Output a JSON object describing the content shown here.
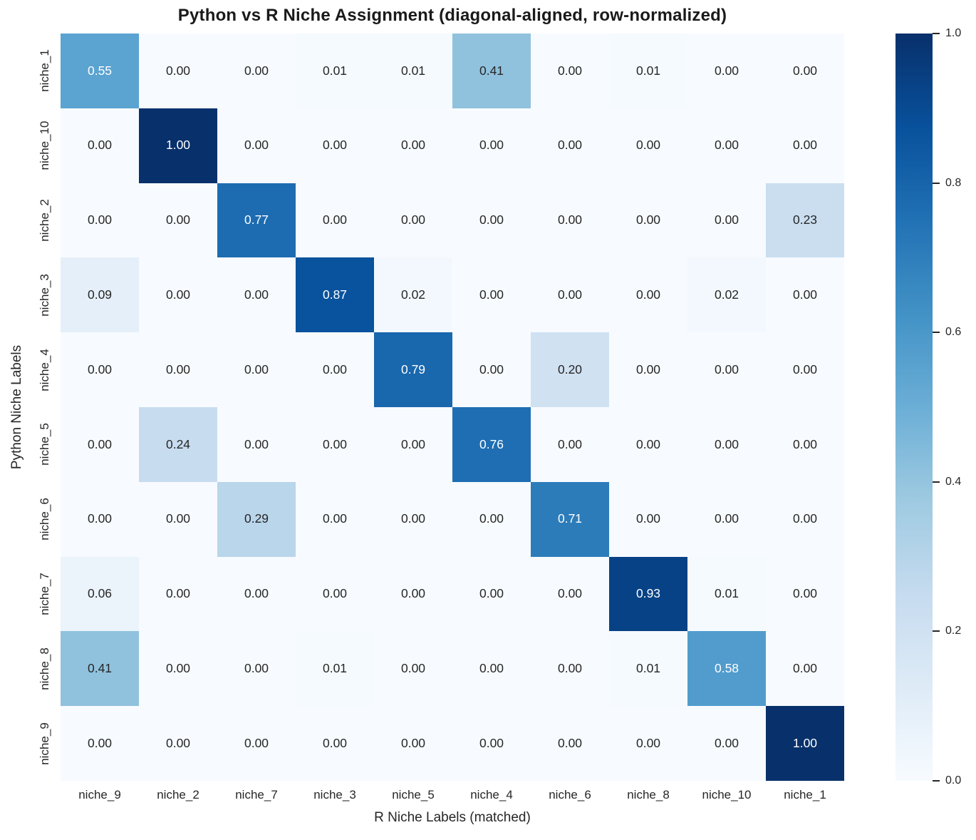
{
  "chart_data": {
    "type": "heatmap",
    "title": "Python vs R Niche Assignment (diagonal-aligned, row-normalized)",
    "xlabel": "R Niche Labels (matched)",
    "ylabel": "Python Niche Labels",
    "x_categories": [
      "niche_9",
      "niche_2",
      "niche_7",
      "niche_3",
      "niche_5",
      "niche_4",
      "niche_6",
      "niche_8",
      "niche_10",
      "niche_1"
    ],
    "y_categories": [
      "niche_1",
      "niche_10",
      "niche_2",
      "niche_3",
      "niche_4",
      "niche_5",
      "niche_6",
      "niche_7",
      "niche_8",
      "niche_9"
    ],
    "values": [
      [
        0.55,
        0.0,
        0.0,
        0.01,
        0.01,
        0.41,
        0.0,
        0.01,
        0.0,
        0.0
      ],
      [
        0.0,
        1.0,
        0.0,
        0.0,
        0.0,
        0.0,
        0.0,
        0.0,
        0.0,
        0.0
      ],
      [
        0.0,
        0.0,
        0.77,
        0.0,
        0.0,
        0.0,
        0.0,
        0.0,
        0.0,
        0.23
      ],
      [
        0.09,
        0.0,
        0.0,
        0.87,
        0.02,
        0.0,
        0.0,
        0.0,
        0.02,
        0.0
      ],
      [
        0.0,
        0.0,
        0.0,
        0.0,
        0.79,
        0.0,
        0.2,
        0.0,
        0.0,
        0.0
      ],
      [
        0.0,
        0.24,
        0.0,
        0.0,
        0.0,
        0.76,
        0.0,
        0.0,
        0.0,
        0.0
      ],
      [
        0.0,
        0.0,
        0.29,
        0.0,
        0.0,
        0.0,
        0.71,
        0.0,
        0.0,
        0.0
      ],
      [
        0.06,
        0.0,
        0.0,
        0.0,
        0.0,
        0.0,
        0.0,
        0.93,
        0.01,
        0.0
      ],
      [
        0.41,
        0.0,
        0.0,
        0.01,
        0.0,
        0.0,
        0.0,
        0.01,
        0.58,
        0.0
      ],
      [
        0.0,
        0.0,
        0.0,
        0.0,
        0.0,
        0.0,
        0.0,
        0.0,
        0.0,
        1.0
      ]
    ],
    "vmin": 0.0,
    "vmax": 1.0,
    "annotation_decimals": 2,
    "grid": false,
    "legend_position": "colorbar-right",
    "colormap": "Blues",
    "colormap_stops": [
      {
        "v": 0.0,
        "c": "#f7fbff"
      },
      {
        "v": 0.125,
        "c": "#deebf7"
      },
      {
        "v": 0.25,
        "c": "#c6dbef"
      },
      {
        "v": 0.375,
        "c": "#9ecae1"
      },
      {
        "v": 0.5,
        "c": "#6baed6"
      },
      {
        "v": 0.625,
        "c": "#4292c6"
      },
      {
        "v": 0.75,
        "c": "#2171b5"
      },
      {
        "v": 0.875,
        "c": "#08519c"
      },
      {
        "v": 1.0,
        "c": "#08306b"
      }
    ],
    "colorbar_ticks": [
      "1.0",
      "0.8",
      "0.6",
      "0.4",
      "0.2",
      "0.0"
    ],
    "colors": {
      "annot_dark": "#262626",
      "annot_light": "#ffffff",
      "axis_text": "#262626",
      "title_text": "#1a1a1a",
      "background": "#ffffff"
    }
  }
}
